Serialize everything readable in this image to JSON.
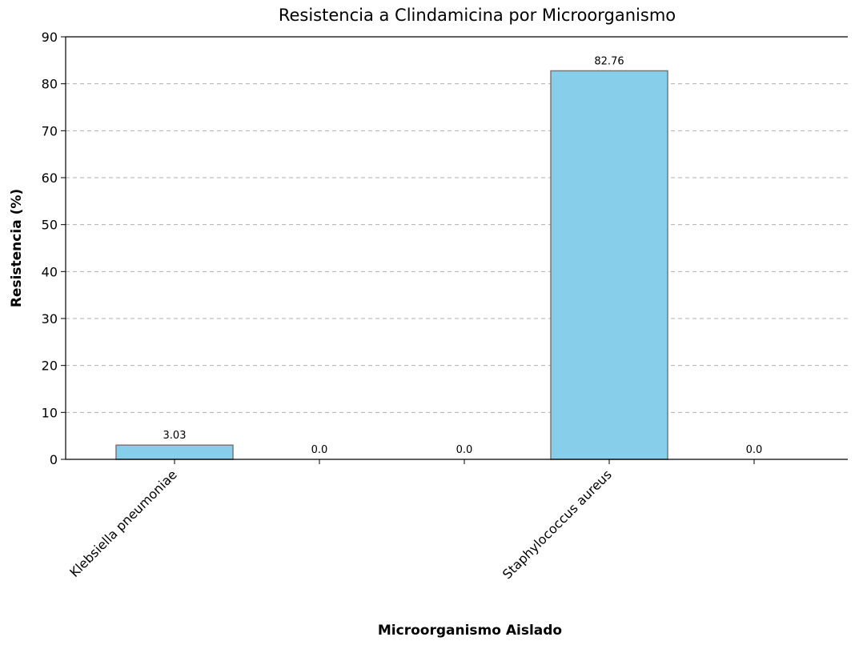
{
  "chart_data": {
    "type": "bar",
    "title": "Resistencia a Clindamicina por Microorganismo",
    "xlabel": "Microorganismo Aislado",
    "ylabel": "Resistencia (%)",
    "categories": [
      "Klebsiella pneumoniae",
      null,
      null,
      "Staphylococcus aureus",
      null
    ],
    "values": [
      3.03,
      0,
      0,
      82.76,
      0
    ],
    "value_labels": [
      "3.03",
      "0.0",
      "0.0",
      "82.76",
      "0.0"
    ],
    "color": "#87ceeb",
    "ylim": [
      0,
      90
    ],
    "yticks": [
      0,
      10,
      20,
      30,
      40,
      50,
      60,
      70,
      80,
      90
    ],
    "grid": true
  }
}
